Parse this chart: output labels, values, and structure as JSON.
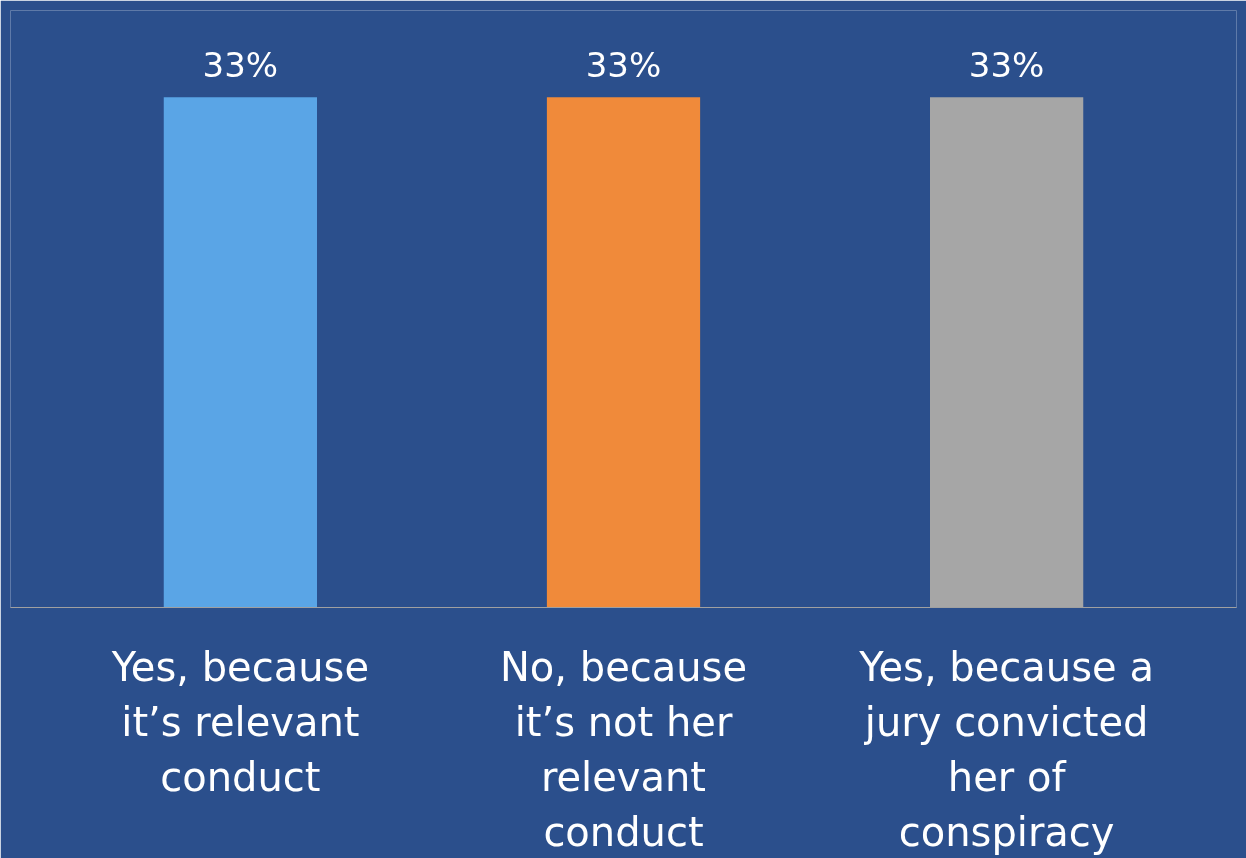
{
  "chart_data": {
    "type": "bar",
    "categories": [
      "Yes, because it’s relevant conduct",
      "No, because it’s not her relevant conduct",
      "Yes, because a jury convicted her of conspiracy"
    ],
    "values": [
      33,
      33,
      33
    ],
    "colors": [
      "#5aa5e6",
      "#f08a3a",
      "#a6a6a6"
    ],
    "value_labels": [
      "33%",
      "33%",
      "33%"
    ],
    "grid": false
  }
}
